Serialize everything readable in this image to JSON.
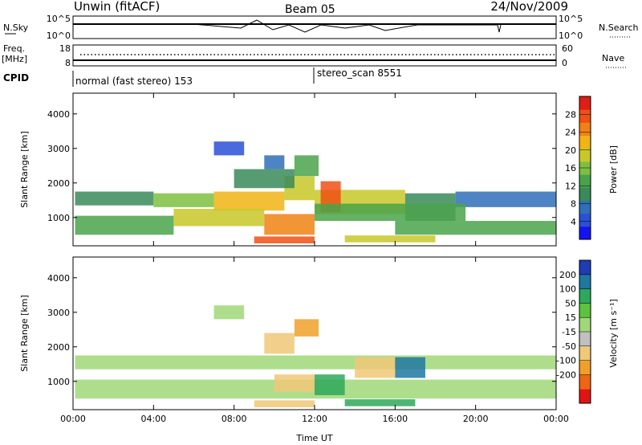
{
  "header": {
    "site": "Unwin (fitACF)",
    "beam": "Beam 05",
    "date": "24/Nov/2009"
  },
  "strips": {
    "nsky_label": "N.Sky",
    "nsky_ticks": [
      "10^5",
      "10^0"
    ],
    "nsearch_label": "N.Search",
    "nsearch_ticks": [
      "10^5",
      "10^0"
    ],
    "freq_label": "Freq.",
    "freq_unit": "[MHz]",
    "freq_ticks": [
      "18",
      "8"
    ],
    "nave_label": "Nave",
    "nave_ticks": [
      "60",
      "0"
    ],
    "cpid_label": "CPID",
    "cpid_segments": [
      "normal (fast stereo) 153",
      "stereo_scan 8551"
    ]
  },
  "chart_data": [
    {
      "type": "heatmap",
      "title": "",
      "xlabel": "Time UT",
      "ylabel": "Slant Range [km]",
      "x_ticks": [
        "00:00",
        "04:00",
        "08:00",
        "12:00",
        "16:00",
        "20:00",
        "00:00"
      ],
      "xlim_hours": [
        0,
        24
      ],
      "y_ticks": [
        1000,
        2000,
        3000,
        4000
      ],
      "ylim": [
        180,
        4600
      ],
      "colorbar": {
        "label": "Power [dB]",
        "ticks": [
          "4",
          "8",
          "12",
          "16",
          "20",
          "24",
          "28"
        ],
        "range": [
          0,
          30
        ],
        "colors": [
          "#1414f0",
          "#2a50d8",
          "#2f6fb8",
          "#3a8a5a",
          "#4aa34a",
          "#7cc040",
          "#c8c828",
          "#f0b414",
          "#f08214",
          "#f05014",
          "#e01e14"
        ]
      },
      "bands": [
        {
          "t0": 0.1,
          "t1": 4.0,
          "r0": 1350,
          "r1": 1750,
          "value": 9
        },
        {
          "t0": 4.0,
          "t1": 7.0,
          "r0": 1300,
          "r1": 1700,
          "value": 14
        },
        {
          "t0": 7.0,
          "t1": 10.5,
          "r0": 1200,
          "r1": 1750,
          "value": 21
        },
        {
          "t0": 10.5,
          "t1": 12.0,
          "r0": 1500,
          "r1": 2200,
          "value": 18
        },
        {
          "t0": 11.0,
          "t1": 12.2,
          "r0": 2200,
          "r1": 2800,
          "value": 13
        },
        {
          "t0": 8.0,
          "t1": 11.0,
          "r0": 1850,
          "r1": 2400,
          "value": 10
        },
        {
          "t0": 7.0,
          "t1": 8.5,
          "r0": 2800,
          "r1": 3200,
          "value": 5
        },
        {
          "t0": 9.5,
          "t1": 10.5,
          "r0": 2400,
          "r1": 2800,
          "value": 6
        },
        {
          "t0": 12.0,
          "t1": 16.5,
          "r0": 1100,
          "r1": 1800,
          "value": 19
        },
        {
          "t0": 12.3,
          "t1": 13.3,
          "r0": 1150,
          "r1": 2050,
          "value": 26
        },
        {
          "t0": 16.5,
          "t1": 19.0,
          "r0": 900,
          "r1": 1700,
          "value": 9
        },
        {
          "t0": 19.0,
          "t1": 24.0,
          "r0": 1300,
          "r1": 1750,
          "value": 7
        },
        {
          "t0": 0.1,
          "t1": 5.0,
          "r0": 500,
          "r1": 1050,
          "value": 12
        },
        {
          "t0": 5.0,
          "t1": 9.5,
          "r0": 750,
          "r1": 1250,
          "value": 17
        },
        {
          "t0": 9.5,
          "t1": 12.0,
          "r0": 500,
          "r1": 1100,
          "value": 24
        },
        {
          "t0": 12.0,
          "t1": 19.5,
          "r0": 900,
          "r1": 1400,
          "value": 11
        },
        {
          "t0": 16.0,
          "t1": 24.0,
          "r0": 500,
          "r1": 900,
          "value": 13
        },
        {
          "t0": 9.0,
          "t1": 12.0,
          "r0": 250,
          "r1": 450,
          "value": 27
        },
        {
          "t0": 13.5,
          "t1": 18.0,
          "r0": 280,
          "r1": 480,
          "value": 19
        }
      ]
    },
    {
      "type": "heatmap",
      "title": "",
      "xlabel": "Time UT",
      "ylabel": "Slant Range [km]",
      "x_ticks": [
        "00:00",
        "04:00",
        "08:00",
        "12:00",
        "16:00",
        "20:00",
        "00:00"
      ],
      "xlim_hours": [
        0,
        24
      ],
      "y_ticks": [
        1000,
        2000,
        3000,
        4000
      ],
      "ylim": [
        180,
        4600
      ],
      "colorbar": {
        "label": "Velocity [m s⁻¹]",
        "ticks": [
          "200",
          "100",
          "50",
          "15",
          "-15",
          "-50",
          "-100",
          "-200"
        ],
        "levels": [
          250,
          200,
          100,
          50,
          15,
          -15,
          -50,
          -100,
          -200,
          -250
        ],
        "colors": [
          "#1e3cb4",
          "#1e78a0",
          "#2ea85a",
          "#5cc43c",
          "#a0d878",
          "#c0c0c0",
          "#f0c878",
          "#f0a028",
          "#f06414",
          "#e01414"
        ]
      },
      "bands": [
        {
          "t0": 0.1,
          "t1": 24.0,
          "r0": 1350,
          "r1": 1750,
          "value": 0
        },
        {
          "t0": 0.1,
          "t1": 24.0,
          "r0": 500,
          "r1": 1050,
          "value": 0
        },
        {
          "t0": 7.0,
          "t1": 8.5,
          "r0": 2800,
          "r1": 3200,
          "value": -8
        },
        {
          "t0": 9.5,
          "t1": 11.0,
          "r0": 1800,
          "r1": 2400,
          "value": -70
        },
        {
          "t0": 10.0,
          "t1": 12.0,
          "r0": 700,
          "r1": 1200,
          "value": -60
        },
        {
          "t0": 11.0,
          "t1": 12.2,
          "r0": 2300,
          "r1": 2800,
          "value": -160
        },
        {
          "t0": 12.0,
          "t1": 13.5,
          "r0": 600,
          "r1": 1200,
          "value": 70
        },
        {
          "t0": 14.0,
          "t1": 16.0,
          "r0": 1100,
          "r1": 1700,
          "value": -60
        },
        {
          "t0": 16.0,
          "t1": 17.5,
          "r0": 1100,
          "r1": 1700,
          "value": 130
        },
        {
          "t0": 9.0,
          "t1": 12.0,
          "r0": 250,
          "r1": 450,
          "value": -90
        },
        {
          "t0": 13.5,
          "t1": 17.0,
          "r0": 280,
          "r1": 480,
          "value": 60
        }
      ]
    }
  ]
}
